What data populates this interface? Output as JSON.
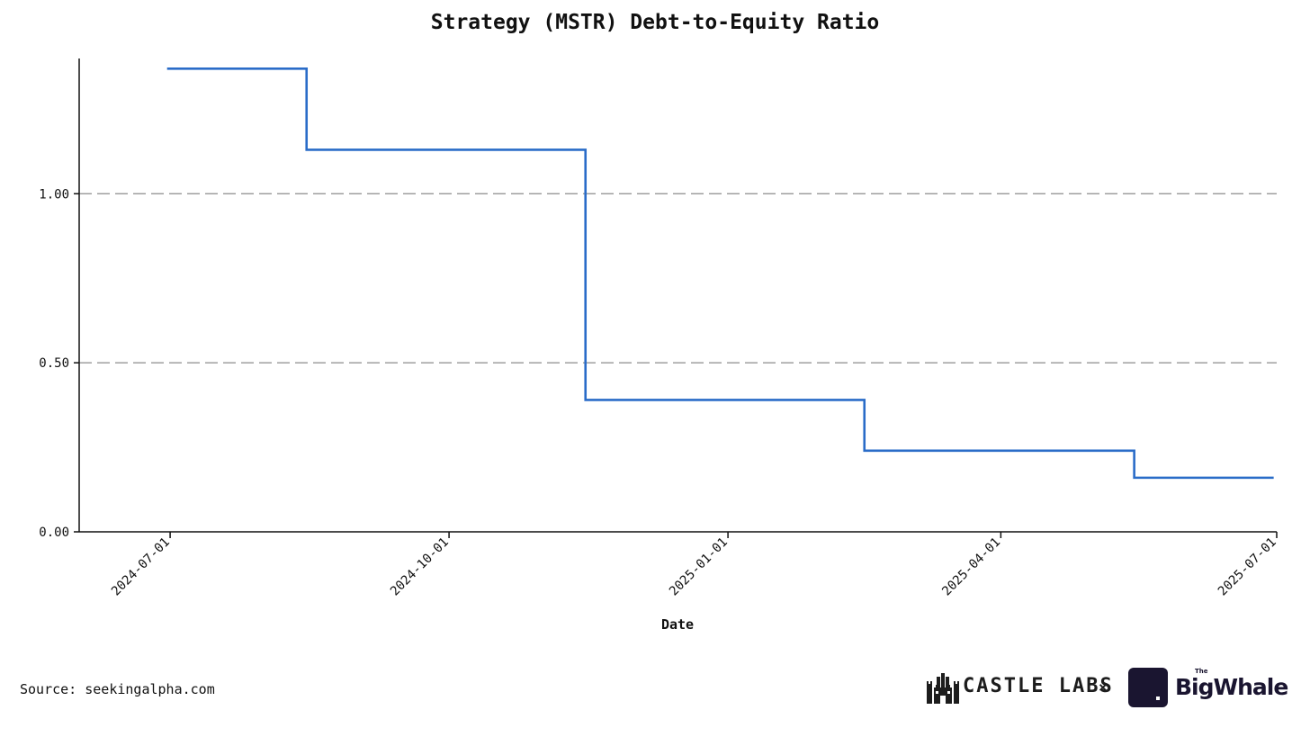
{
  "chart_data": {
    "type": "line",
    "step": "post",
    "title": "Strategy (MSTR) Debt-to-Equity Ratio",
    "xlabel": "Date",
    "ylabel": "",
    "x_type": "date",
    "x": [
      "2024-06-30",
      "2024-08-15",
      "2024-11-15",
      "2025-02-15",
      "2025-05-15",
      "2025-06-30"
    ],
    "series": [
      {
        "values": [
          1.37,
          1.13,
          0.39,
          0.24,
          0.16,
          0.16
        ],
        "color": "#2a6cc8"
      }
    ],
    "xlim": [
      "2024-06-01",
      "2025-07-01"
    ],
    "ylim": [
      0,
      1.4
    ],
    "x_ticks": [
      "2024-07-01",
      "2024-10-01",
      "2025-01-01",
      "2025-04-01",
      "2025-07-01"
    ],
    "y_ticks": [
      "0.00",
      "0.50",
      "1.00"
    ],
    "grid": "horizontal dashed at 0.50 and 1.00",
    "legend": "none"
  },
  "footer": {
    "source": "Source: seekingalpha.com",
    "castle_labs": "CASTLE LABS",
    "separator": "×",
    "big_whale_prefix": "The",
    "big_whale": "BigWhale"
  },
  "colors": {
    "line": "#2a6cc8",
    "grid": "#8c8c8c",
    "axis": "#111111",
    "logo": "#1a1530"
  },
  "icons": {
    "castle_logo": "castle-icon",
    "whale_logo": "whale-tile-icon"
  }
}
